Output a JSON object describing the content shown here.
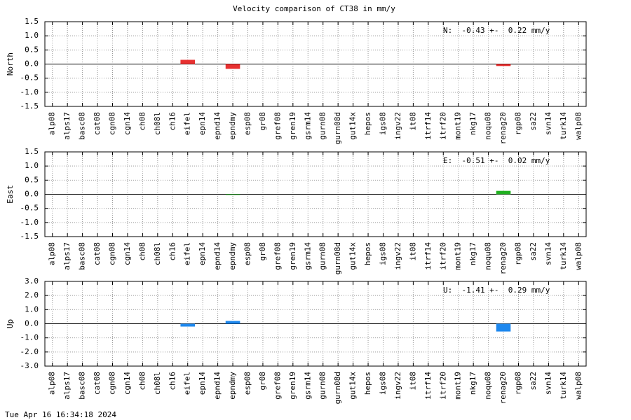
{
  "title": "Velocity comparison of CT38 in mm/y",
  "footer": "Tue Apr 16 16:34:18 2024",
  "chart_data": [
    {
      "type": "bar",
      "ylabel": "North",
      "annotation": "N:  -0.43 +-  0.22 mm/y",
      "color": "#e83030",
      "grid": true,
      "categories": [
        "alp08",
        "alps17",
        "basc08",
        "cat08",
        "cgn08",
        "cgn14",
        "ch08",
        "ch08l",
        "ch16",
        "eifel",
        "epn14",
        "epnd14",
        "epndmy",
        "esp08",
        "gr08",
        "gref08",
        "gren19",
        "gsrm14",
        "gurn08",
        "gurn08d",
        "gut14x",
        "hepos",
        "igs08",
        "ingv22",
        "it08",
        "itrf14",
        "itrf20",
        "mont19",
        "nkg17",
        "noqu08",
        "renag20",
        "rgp08",
        "sa22",
        "svn14",
        "turk14",
        "walp08"
      ],
      "values": [
        null,
        null,
        null,
        null,
        null,
        null,
        null,
        null,
        null,
        0.15,
        null,
        null,
        -0.17,
        null,
        null,
        null,
        null,
        null,
        null,
        null,
        null,
        null,
        null,
        null,
        null,
        null,
        null,
        null,
        null,
        null,
        -0.07,
        null,
        null,
        null,
        null,
        null
      ],
      "ylim": [
        -1.5,
        1.5
      ],
      "yticks": [
        -1.5,
        {
          "value": -1,
          "label": "-1.0"
        },
        -0.5,
        {
          "value": 0,
          "label": "0.0"
        },
        0.5,
        {
          "value": 1,
          "label": "1.0"
        },
        1.5
      ]
    },
    {
      "type": "bar",
      "ylabel": "East",
      "annotation": "E:  -0.51 +-  0.02 mm/y",
      "color": "#20b020",
      "grid": true,
      "categories": [
        "alp08",
        "alps17",
        "basc08",
        "cat08",
        "cgn08",
        "cgn14",
        "ch08",
        "ch08l",
        "ch16",
        "eifel",
        "epn14",
        "epnd14",
        "epndmy",
        "esp08",
        "gr08",
        "gref08",
        "gren19",
        "gsrm14",
        "gurn08",
        "gurn08d",
        "gut14x",
        "hepos",
        "igs08",
        "ingv22",
        "it08",
        "itrf14",
        "itrf20",
        "mont19",
        "nkg17",
        "noqu08",
        "renag20",
        "rgp08",
        "sa22",
        "svn14",
        "turk14",
        "walp08"
      ],
      "values": [
        null,
        null,
        null,
        null,
        null,
        null,
        null,
        null,
        null,
        null,
        null,
        null,
        -0.02,
        null,
        null,
        null,
        null,
        null,
        null,
        null,
        null,
        null,
        null,
        null,
        null,
        null,
        null,
        null,
        null,
        null,
        0.12,
        null,
        null,
        null,
        null,
        null
      ],
      "ylim": [
        -1.5,
        1.5
      ],
      "yticks": [
        -1.5,
        {
          "value": -1,
          "label": "-1.0"
        },
        -0.5,
        {
          "value": 0,
          "label": "0.0"
        },
        0.5,
        {
          "value": 1,
          "label": "1.0"
        },
        1.5
      ]
    },
    {
      "type": "bar",
      "ylabel": "Up",
      "annotation": "U:  -1.41 +-  0.29 mm/y",
      "color": "#1e88ee",
      "grid": true,
      "categories": [
        "alp08",
        "alps17",
        "basc08",
        "cat08",
        "cgn08",
        "cgn14",
        "ch08",
        "ch08l",
        "ch16",
        "eifel",
        "epn14",
        "epnd14",
        "epndmy",
        "esp08",
        "gr08",
        "gref08",
        "gren19",
        "gsrm14",
        "gurn08",
        "gurn08d",
        "gut14x",
        "hepos",
        "igs08",
        "ingv22",
        "it08",
        "itrf14",
        "itrf20",
        "mont19",
        "nkg17",
        "noqu08",
        "renag20",
        "rgp08",
        "sa22",
        "svn14",
        "turk14",
        "walp08"
      ],
      "values": [
        null,
        null,
        null,
        null,
        null,
        null,
        null,
        null,
        null,
        -0.2,
        null,
        null,
        0.2,
        null,
        null,
        null,
        null,
        null,
        null,
        null,
        null,
        null,
        null,
        null,
        null,
        null,
        null,
        null,
        null,
        null,
        -0.55,
        null,
        null,
        null,
        null,
        null
      ],
      "ylim": [
        -3,
        3
      ],
      "yticks": [
        {
          "value": -3,
          "label": "-3.0"
        },
        {
          "value": -2,
          "label": "-2.0"
        },
        {
          "value": -1,
          "label": "-1.0"
        },
        {
          "value": 0,
          "label": "0.0"
        },
        {
          "value": 1,
          "label": "1.0"
        },
        {
          "value": 2,
          "label": "2.0"
        },
        {
          "value": 3,
          "label": "3.0"
        }
      ]
    }
  ]
}
